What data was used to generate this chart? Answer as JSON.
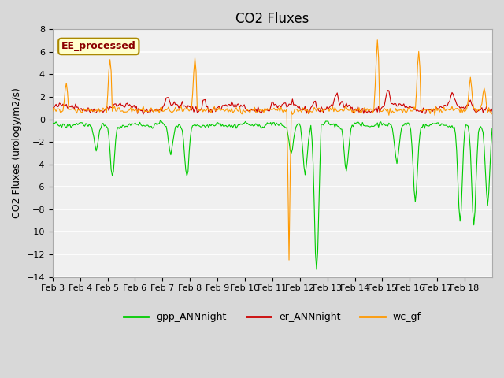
{
  "title": "CO2 Fluxes",
  "ylabel": "CO2 Fluxes (urology/m2/s)",
  "ylim": [
    -14,
    8
  ],
  "yticks": [
    -14,
    -12,
    -10,
    -8,
    -6,
    -4,
    -2,
    0,
    2,
    4,
    6,
    8
  ],
  "xlabel_dates": [
    "Feb 3",
    "Feb 4",
    "Feb 5",
    "Feb 6",
    "Feb 7",
    "Feb 8",
    "Feb 9",
    "Feb 10",
    "Feb 11",
    "Feb 12",
    "Feb 13",
    "Feb 14",
    "Feb 15",
    "Feb 16",
    "Feb 17",
    "Feb 18"
  ],
  "color_gpp": "#00cc00",
  "color_er": "#cc0000",
  "color_wc": "#ff9900",
  "legend_label_gpp": "gpp_ANNnight",
  "legend_label_er": "er_ANNnight",
  "legend_label_wc": "wc_gf",
  "annotation_text": "EE_processed",
  "annotation_color": "#8B0000",
  "annotation_bg": "#ffffcc",
  "annotation_border": "#aa8800",
  "plot_bg_color": "#f0f0f0",
  "fig_bg_color": "#d8d8d8",
  "grid_color": "#ffffff",
  "n_days": 16,
  "n_per_day": 24,
  "title_fontsize": 12,
  "label_fontsize": 9,
  "tick_fontsize": 8
}
